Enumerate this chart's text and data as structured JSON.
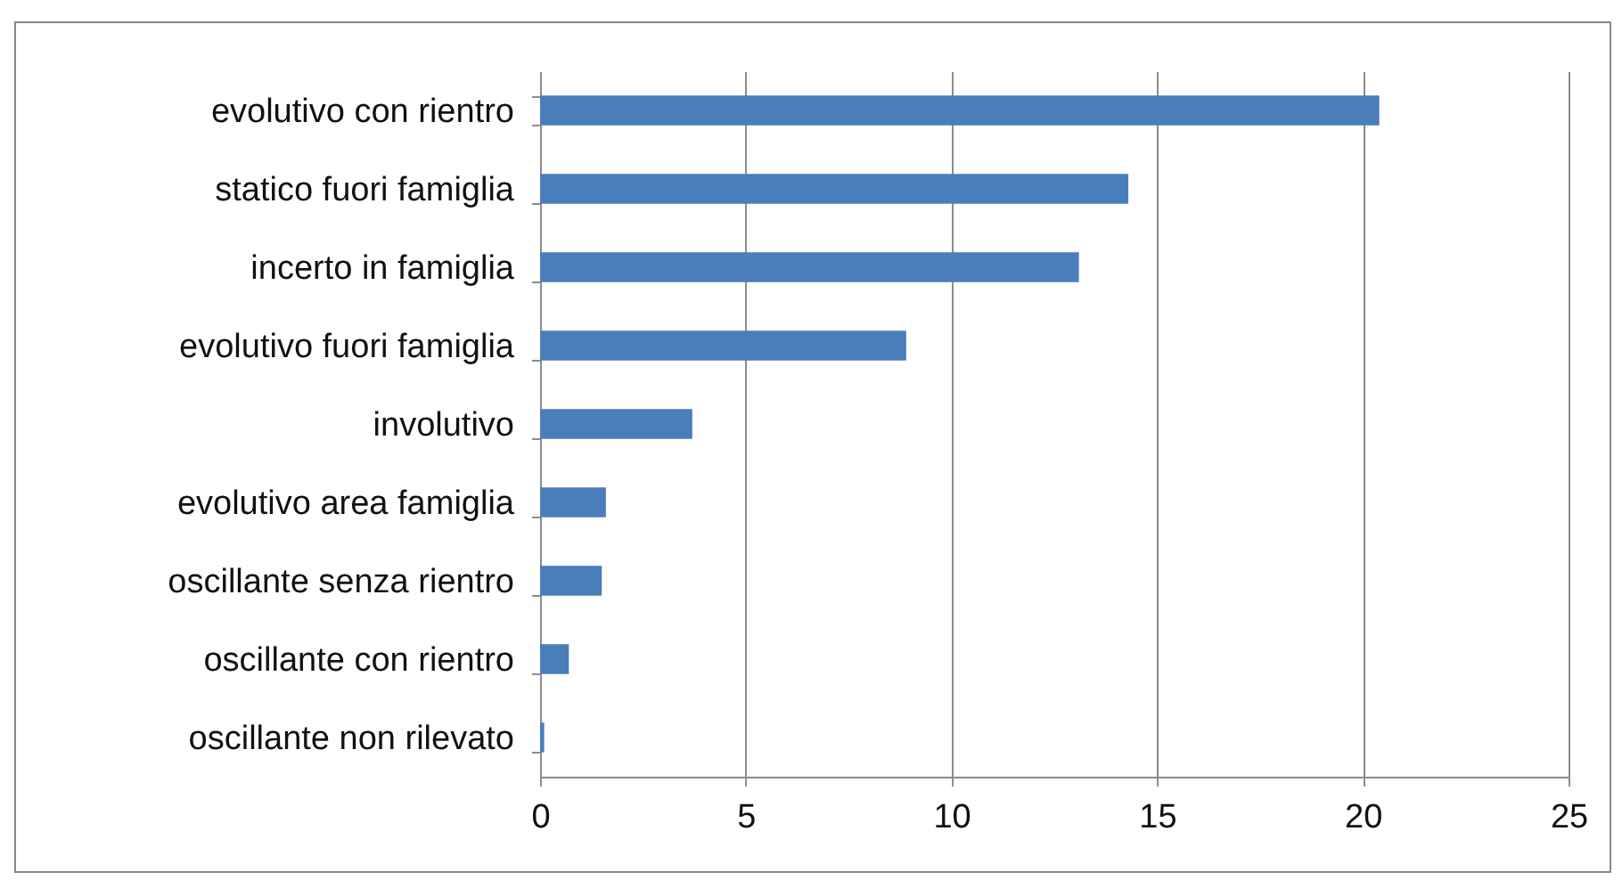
{
  "chart_data": {
    "type": "bar",
    "orientation": "horizontal",
    "categories": [
      "evolutivo con rientro",
      "statico fuori famiglia",
      "incerto in famiglia",
      "evolutivo fuori famiglia",
      "involutivo",
      "evolutivo area famiglia",
      "oscillante senza rientro",
      "oscillante con rientro",
      "oscillante non rilevato"
    ],
    "values": [
      20.4,
      14.3,
      13.1,
      8.9,
      3.7,
      1.6,
      1.5,
      0.7,
      0.1
    ],
    "color": "#4a7ebb",
    "xlim": [
      0,
      25
    ],
    "xticks": [
      0,
      5,
      10,
      15,
      20,
      25
    ],
    "grid": "x"
  }
}
